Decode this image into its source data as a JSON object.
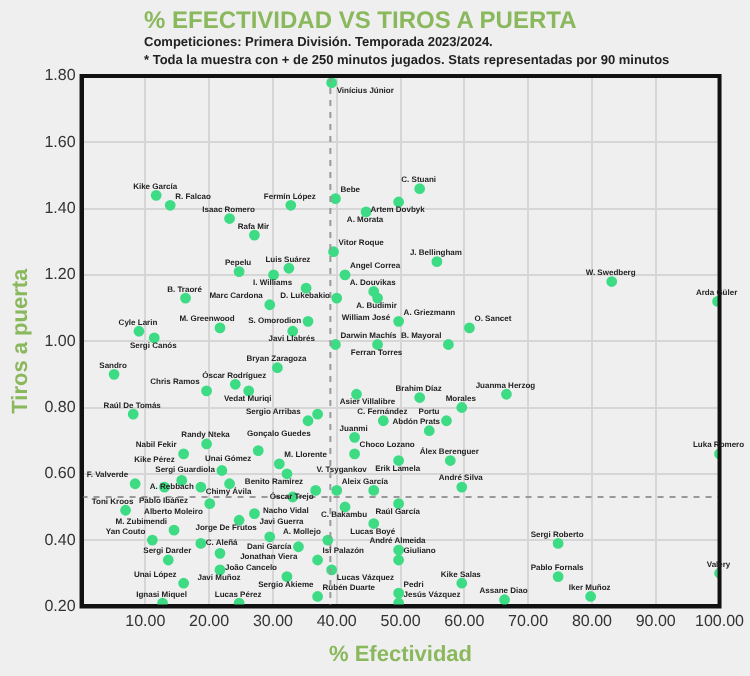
{
  "chart_data": {
    "type": "scatter",
    "title": "% EFECTIVIDAD VS TIROS A PUERTA",
    "subtitle": "Competiciones: Primera División. Temporada 2023/2024.",
    "xlabel": "% Efectividad",
    "ylabel": "Tiros a puerta",
    "xlim": [
      0,
      100
    ],
    "ylim": [
      0.2,
      1.8
    ],
    "xticks": [
      {
        "value": 10,
        "label": "10.00"
      },
      {
        "value": 20,
        "label": "20.00"
      },
      {
        "value": 30,
        "label": "30.00"
      },
      {
        "value": 40,
        "label": "40.00"
      },
      {
        "value": 50,
        "label": "50.00"
      },
      {
        "value": 60,
        "label": "60.00"
      },
      {
        "value": 70,
        "label": "70.00"
      },
      {
        "value": 80,
        "label": "80.00"
      },
      {
        "value": 90,
        "label": "90.00"
      },
      {
        "value": 100,
        "label": "100.00"
      }
    ],
    "yticks": [
      {
        "value": 0.2,
        "label": "0.20"
      },
      {
        "value": 0.4,
        "label": "0.40"
      },
      {
        "value": 0.6,
        "label": "0.60"
      },
      {
        "value": 0.8,
        "label": "0.80"
      },
      {
        "value": 1.0,
        "label": "1.00"
      },
      {
        "value": 1.2,
        "label": "1.20"
      },
      {
        "value": 1.4,
        "label": "1.40"
      },
      {
        "value": 1.6,
        "label": "1.60"
      },
      {
        "value": 1.8,
        "label": "1.80"
      }
    ],
    "grid": true,
    "marker": "circle",
    "ref_lines": [
      {
        "axis": "x",
        "value": 39,
        "color": "#999999",
        "line_style": "dashed"
      },
      {
        "axis": "y",
        "value": 0.53,
        "color": "#999999",
        "line_style": "dashed"
      }
    ],
    "x": [
      39.2,
      11.7,
      13.9,
      32.8,
      23.2,
      27.1,
      39.8,
      49.7,
      53,
      44.6,
      39.5,
      24.7,
      32.5,
      30.1,
      41.3,
      55.7,
      83.1,
      99.7,
      16.3,
      35.2,
      45.8,
      46.4,
      40,
      29.5,
      35.5,
      49.7,
      60.8,
      33.1,
      9,
      21.7,
      11.4,
      39.8,
      46.4,
      57.5,
      5.1,
      30.7,
      24.1,
      26.2,
      19.6,
      53,
      66.6,
      43.1,
      8.1,
      37,
      35.5,
      59.6,
      47.3,
      57.2,
      54.5,
      42.8,
      19.6,
      27.7,
      16,
      42.8,
      49.7,
      57.8,
      100,
      22,
      31,
      32.2,
      59.6,
      23.2,
      15.7,
      8.4,
      13,
      18.7,
      36.7,
      40,
      45.8,
      49.7,
      41.3,
      33.1,
      20.1,
      6.9,
      27.1,
      24.7,
      45.8,
      14.5,
      11.1,
      18.7,
      29.5,
      38.6,
      49.7,
      49.7,
      74.7,
      21.7,
      34,
      37,
      13.6,
      39.2,
      59.6,
      21.7,
      74.7,
      79.8,
      100,
      49.7,
      49.7,
      66.3,
      32.2,
      24.7,
      12.7,
      16,
      37
    ],
    "series": [
      {
        "color": "#3ddc84",
        "values": [
          1.78,
          1.44,
          1.41,
          1.41,
          1.37,
          1.32,
          1.43,
          1.42,
          1.46,
          1.39,
          1.27,
          1.21,
          1.22,
          1.2,
          1.2,
          1.24,
          1.18,
          1.12,
          1.13,
          1.16,
          1.15,
          1.13,
          1.13,
          1.11,
          1.06,
          1.06,
          1.04,
          1.03,
          1.03,
          1.04,
          1.01,
          0.99,
          0.99,
          0.99,
          0.9,
          0.92,
          0.87,
          0.85,
          0.85,
          0.83,
          0.84,
          0.84,
          0.78,
          0.78,
          0.76,
          0.8,
          0.76,
          0.76,
          0.73,
          0.71,
          0.69,
          0.67,
          0.66,
          0.66,
          0.64,
          0.64,
          0.66,
          0.61,
          0.63,
          0.6,
          0.56,
          0.57,
          0.58,
          0.57,
          0.56,
          0.56,
          0.55,
          0.55,
          0.55,
          0.51,
          0.5,
          0.53,
          0.51,
          0.49,
          0.48,
          0.46,
          0.45,
          0.43,
          0.4,
          0.39,
          0.41,
          0.4,
          0.37,
          0.34,
          0.39,
          0.36,
          0.38,
          0.34,
          0.34,
          0.31,
          0.27,
          0.31,
          0.29,
          0.23,
          0.3,
          0.24,
          0.21,
          0.22,
          0.29,
          0.21,
          0.21,
          0.27,
          0.23
        ]
      }
    ],
    "annotations": [
      "* Toda la muestra con + de 250 minutos jugados. Stats representadas por 90 minutos",
      {
        "text": "Vinícius Júnior",
        "x": 39.2,
        "y": 1.78
      },
      {
        "text": "Kike García",
        "x": 11.7,
        "y": 1.44
      },
      {
        "text": "R. Falcao",
        "x": 13.9,
        "y": 1.41
      },
      {
        "text": "Fermín López",
        "x": 32.8,
        "y": 1.41
      },
      {
        "text": "Isaac Romero",
        "x": 23.2,
        "y": 1.37
      },
      {
        "text": "Rafa Mir",
        "x": 27.1,
        "y": 1.32
      },
      {
        "text": "Bebe",
        "x": 39.8,
        "y": 1.43
      },
      {
        "text": "Artem Dovbyk",
        "x": 49.7,
        "y": 1.42
      },
      {
        "text": "C. Stuani",
        "x": 53,
        "y": 1.46
      },
      {
        "text": "A. Morata",
        "x": 44.6,
        "y": 1.39
      },
      {
        "text": "Vitor Roque",
        "x": 39.5,
        "y": 1.27
      },
      {
        "text": "Pepelu",
        "x": 24.7,
        "y": 1.21
      },
      {
        "text": "Luis Suárez",
        "x": 32.5,
        "y": 1.22
      },
      {
        "text": "I. Williams",
        "x": 30.1,
        "y": 1.2
      },
      {
        "text": "Angel Correa",
        "x": 41.3,
        "y": 1.2
      },
      {
        "text": "J. Bellingham",
        "x": 55.7,
        "y": 1.24
      },
      {
        "text": "W. Swedberg",
        "x": 83.1,
        "y": 1.18
      },
      {
        "text": "Arda Güler",
        "x": 99.7,
        "y": 1.12
      },
      {
        "text": "B. Traoré",
        "x": 16.3,
        "y": 1.13
      },
      {
        "text": "D. Lukebakio",
        "x": 35.2,
        "y": 1.16
      },
      {
        "text": "A. Douvikas",
        "x": 45.8,
        "y": 1.15
      },
      {
        "text": "A. Budimir",
        "x": 46.4,
        "y": 1.13
      },
      {
        "text": "William José",
        "x": 40,
        "y": 1.13
      },
      {
        "text": "Marc Cardona",
        "x": 29.5,
        "y": 1.11
      },
      {
        "text": "S. Omorodion",
        "x": 35.5,
        "y": 1.06
      },
      {
        "text": "A. Griezmann",
        "x": 49.7,
        "y": 1.06
      },
      {
        "text": "O. Sancet",
        "x": 60.8,
        "y": 1.04
      },
      {
        "text": "Javi Llabrés",
        "x": 33.1,
        "y": 1.03
      },
      {
        "text": "Cyle Larin",
        "x": 9,
        "y": 1.03
      },
      {
        "text": "M. Greenwood",
        "x": 21.7,
        "y": 1.04
      },
      {
        "text": "Sergi Canós",
        "x": 11.4,
        "y": 1.01
      },
      {
        "text": "Darwin Machís",
        "x": 39.8,
        "y": 0.99
      },
      {
        "text": "Ferran Torres",
        "x": 46.4,
        "y": 0.99
      },
      {
        "text": "B. Mayoral",
        "x": 57.5,
        "y": 0.99
      },
      {
        "text": "Sandro",
        "x": 5.1,
        "y": 0.9
      },
      {
        "text": "Bryan Zaragoza",
        "x": 30.7,
        "y": 0.92
      },
      {
        "text": "Óscar Rodríguez",
        "x": 24.1,
        "y": 0.87
      },
      {
        "text": "Vedat Muriqi",
        "x": 26.2,
        "y": 0.85
      },
      {
        "text": "Chris Ramos",
        "x": 19.6,
        "y": 0.85
      },
      {
        "text": "Brahim Díaz",
        "x": 53,
        "y": 0.83
      },
      {
        "text": "Juanma Herzog",
        "x": 66.6,
        "y": 0.84
      },
      {
        "text": "Asier Villalibre",
        "x": 43.1,
        "y": 0.84
      },
      {
        "text": "Raúl De Tomás",
        "x": 8.1,
        "y": 0.78
      },
      {
        "text": "Gonçalo Guedes",
        "x": 37,
        "y": 0.78
      },
      {
        "text": "Sergio Arribas",
        "x": 35.5,
        "y": 0.76
      },
      {
        "text": "Morales",
        "x": 59.6,
        "y": 0.8
      },
      {
        "text": "C. Fernández",
        "x": 47.3,
        "y": 0.76
      },
      {
        "text": "Portu",
        "x": 57.2,
        "y": 0.76
      },
      {
        "text": "Abdón Prats",
        "x": 54.5,
        "y": 0.73
      },
      {
        "text": "Juanmi",
        "x": 42.8,
        "y": 0.71
      },
      {
        "text": "Randy Nteka",
        "x": 19.6,
        "y": 0.69
      },
      {
        "text": "Unai Gómez",
        "x": 27.7,
        "y": 0.67
      },
      {
        "text": "Nabil Fekir",
        "x": 16,
        "y": 0.66
      },
      {
        "text": "Choco Lozano",
        "x": 42.8,
        "y": 0.66
      },
      {
        "text": "Erik Lamela",
        "x": 49.7,
        "y": 0.64
      },
      {
        "text": "Álex Berenguer",
        "x": 57.8,
        "y": 0.64
      },
      {
        "text": "Luka Romero",
        "x": 100,
        "y": 0.66
      },
      {
        "text": "Sergi Guardiola",
        "x": 22,
        "y": 0.61
      },
      {
        "text": "M. Llorente",
        "x": 31,
        "y": 0.63
      },
      {
        "text": "Benito Ramírez",
        "x": 32.2,
        "y": 0.6
      },
      {
        "text": "André Silva",
        "x": 59.6,
        "y": 0.56
      },
      {
        "text": "Chimy Ávila",
        "x": 23.2,
        "y": 0.57
      },
      {
        "text": "Kike Pérez",
        "x": 15.7,
        "y": 0.58
      },
      {
        "text": "F. Valverde",
        "x": 8.4,
        "y": 0.57
      },
      {
        "text": "Pablo Ibáñez",
        "x": 13,
        "y": 0.56
      },
      {
        "text": "A. Rebbach",
        "x": 18.7,
        "y": 0.56
      },
      {
        "text": "Nacho Vidal",
        "x": 36.7,
        "y": 0.55
      },
      {
        "text": "Aleix García",
        "x": 40,
        "y": 0.55
      },
      {
        "text": "V. Tsygankov",
        "x": 45.8,
        "y": 0.55
      },
      {
        "text": "Raúl García",
        "x": 49.7,
        "y": 0.51
      },
      {
        "text": "C. Bakambu",
        "x": 41.3,
        "y": 0.5
      },
      {
        "text": "Óscar Trejo",
        "x": 33.1,
        "y": 0.53
      },
      {
        "text": "Alberto Moleiro",
        "x": 20.1,
        "y": 0.51
      },
      {
        "text": "Toni Kroos",
        "x": 6.9,
        "y": 0.49
      },
      {
        "text": "Javi Guerra",
        "x": 27.1,
        "y": 0.48
      },
      {
        "text": "Jorge De Frutos",
        "x": 24.7,
        "y": 0.46
      },
      {
        "text": "Lucas Boyé",
        "x": 45.8,
        "y": 0.45
      },
      {
        "text": "M. Zubimendi",
        "x": 14.5,
        "y": 0.43
      },
      {
        "text": "Yan Couto",
        "x": 11.1,
        "y": 0.4
      },
      {
        "text": "C. Aleñá",
        "x": 18.7,
        "y": 0.39
      },
      {
        "text": "Jonathan Viera",
        "x": 29.5,
        "y": 0.41
      },
      {
        "text": "A. Mollejo",
        "x": 38.6,
        "y": 0.4
      },
      {
        "text": "André Almeida",
        "x": 49.7,
        "y": 0.37
      },
      {
        "text": "Giuliano",
        "x": 49.7,
        "y": 0.34
      },
      {
        "text": "Sergi Roberto",
        "x": 74.7,
        "y": 0.39
      },
      {
        "text": "João Cancelo",
        "x": 21.7,
        "y": 0.36
      },
      {
        "text": "Dani García",
        "x": 34,
        "y": 0.38
      },
      {
        "text": "Isi Palazón",
        "x": 37,
        "y": 0.34
      },
      {
        "text": "Sergi Darder",
        "x": 13.6,
        "y": 0.34
      },
      {
        "text": "Lucas Vázquez",
        "x": 39.2,
        "y": 0.31
      },
      {
        "text": "Kike Salas",
        "x": 59.6,
        "y": 0.27
      },
      {
        "text": "Javi Muñoz",
        "x": 21.7,
        "y": 0.31
      },
      {
        "text": "Pablo Fornals",
        "x": 74.7,
        "y": 0.29
      },
      {
        "text": "Iker Muñoz",
        "x": 79.8,
        "y": 0.23
      },
      {
        "text": "Valery",
        "x": 100,
        "y": 0.3
      },
      {
        "text": "Pedri",
        "x": 49.7,
        "y": 0.24
      },
      {
        "text": "Jesús Vázquez",
        "x": 49.7,
        "y": 0.21
      },
      {
        "text": "Assane Diao",
        "x": 66.3,
        "y": 0.22
      },
      {
        "text": "Sergio Akieme",
        "x": 32.2,
        "y": 0.29
      },
      {
        "text": "Lucas Pérez",
        "x": 24.7,
        "y": 0.21
      },
      {
        "text": "Ignasi Miquel",
        "x": 12.7,
        "y": 0.21
      },
      {
        "text": "Unai López",
        "x": 16,
        "y": 0.27
      },
      {
        "text": "Rubén Duarte",
        "x": 37,
        "y": 0.23
      }
    ]
  }
}
